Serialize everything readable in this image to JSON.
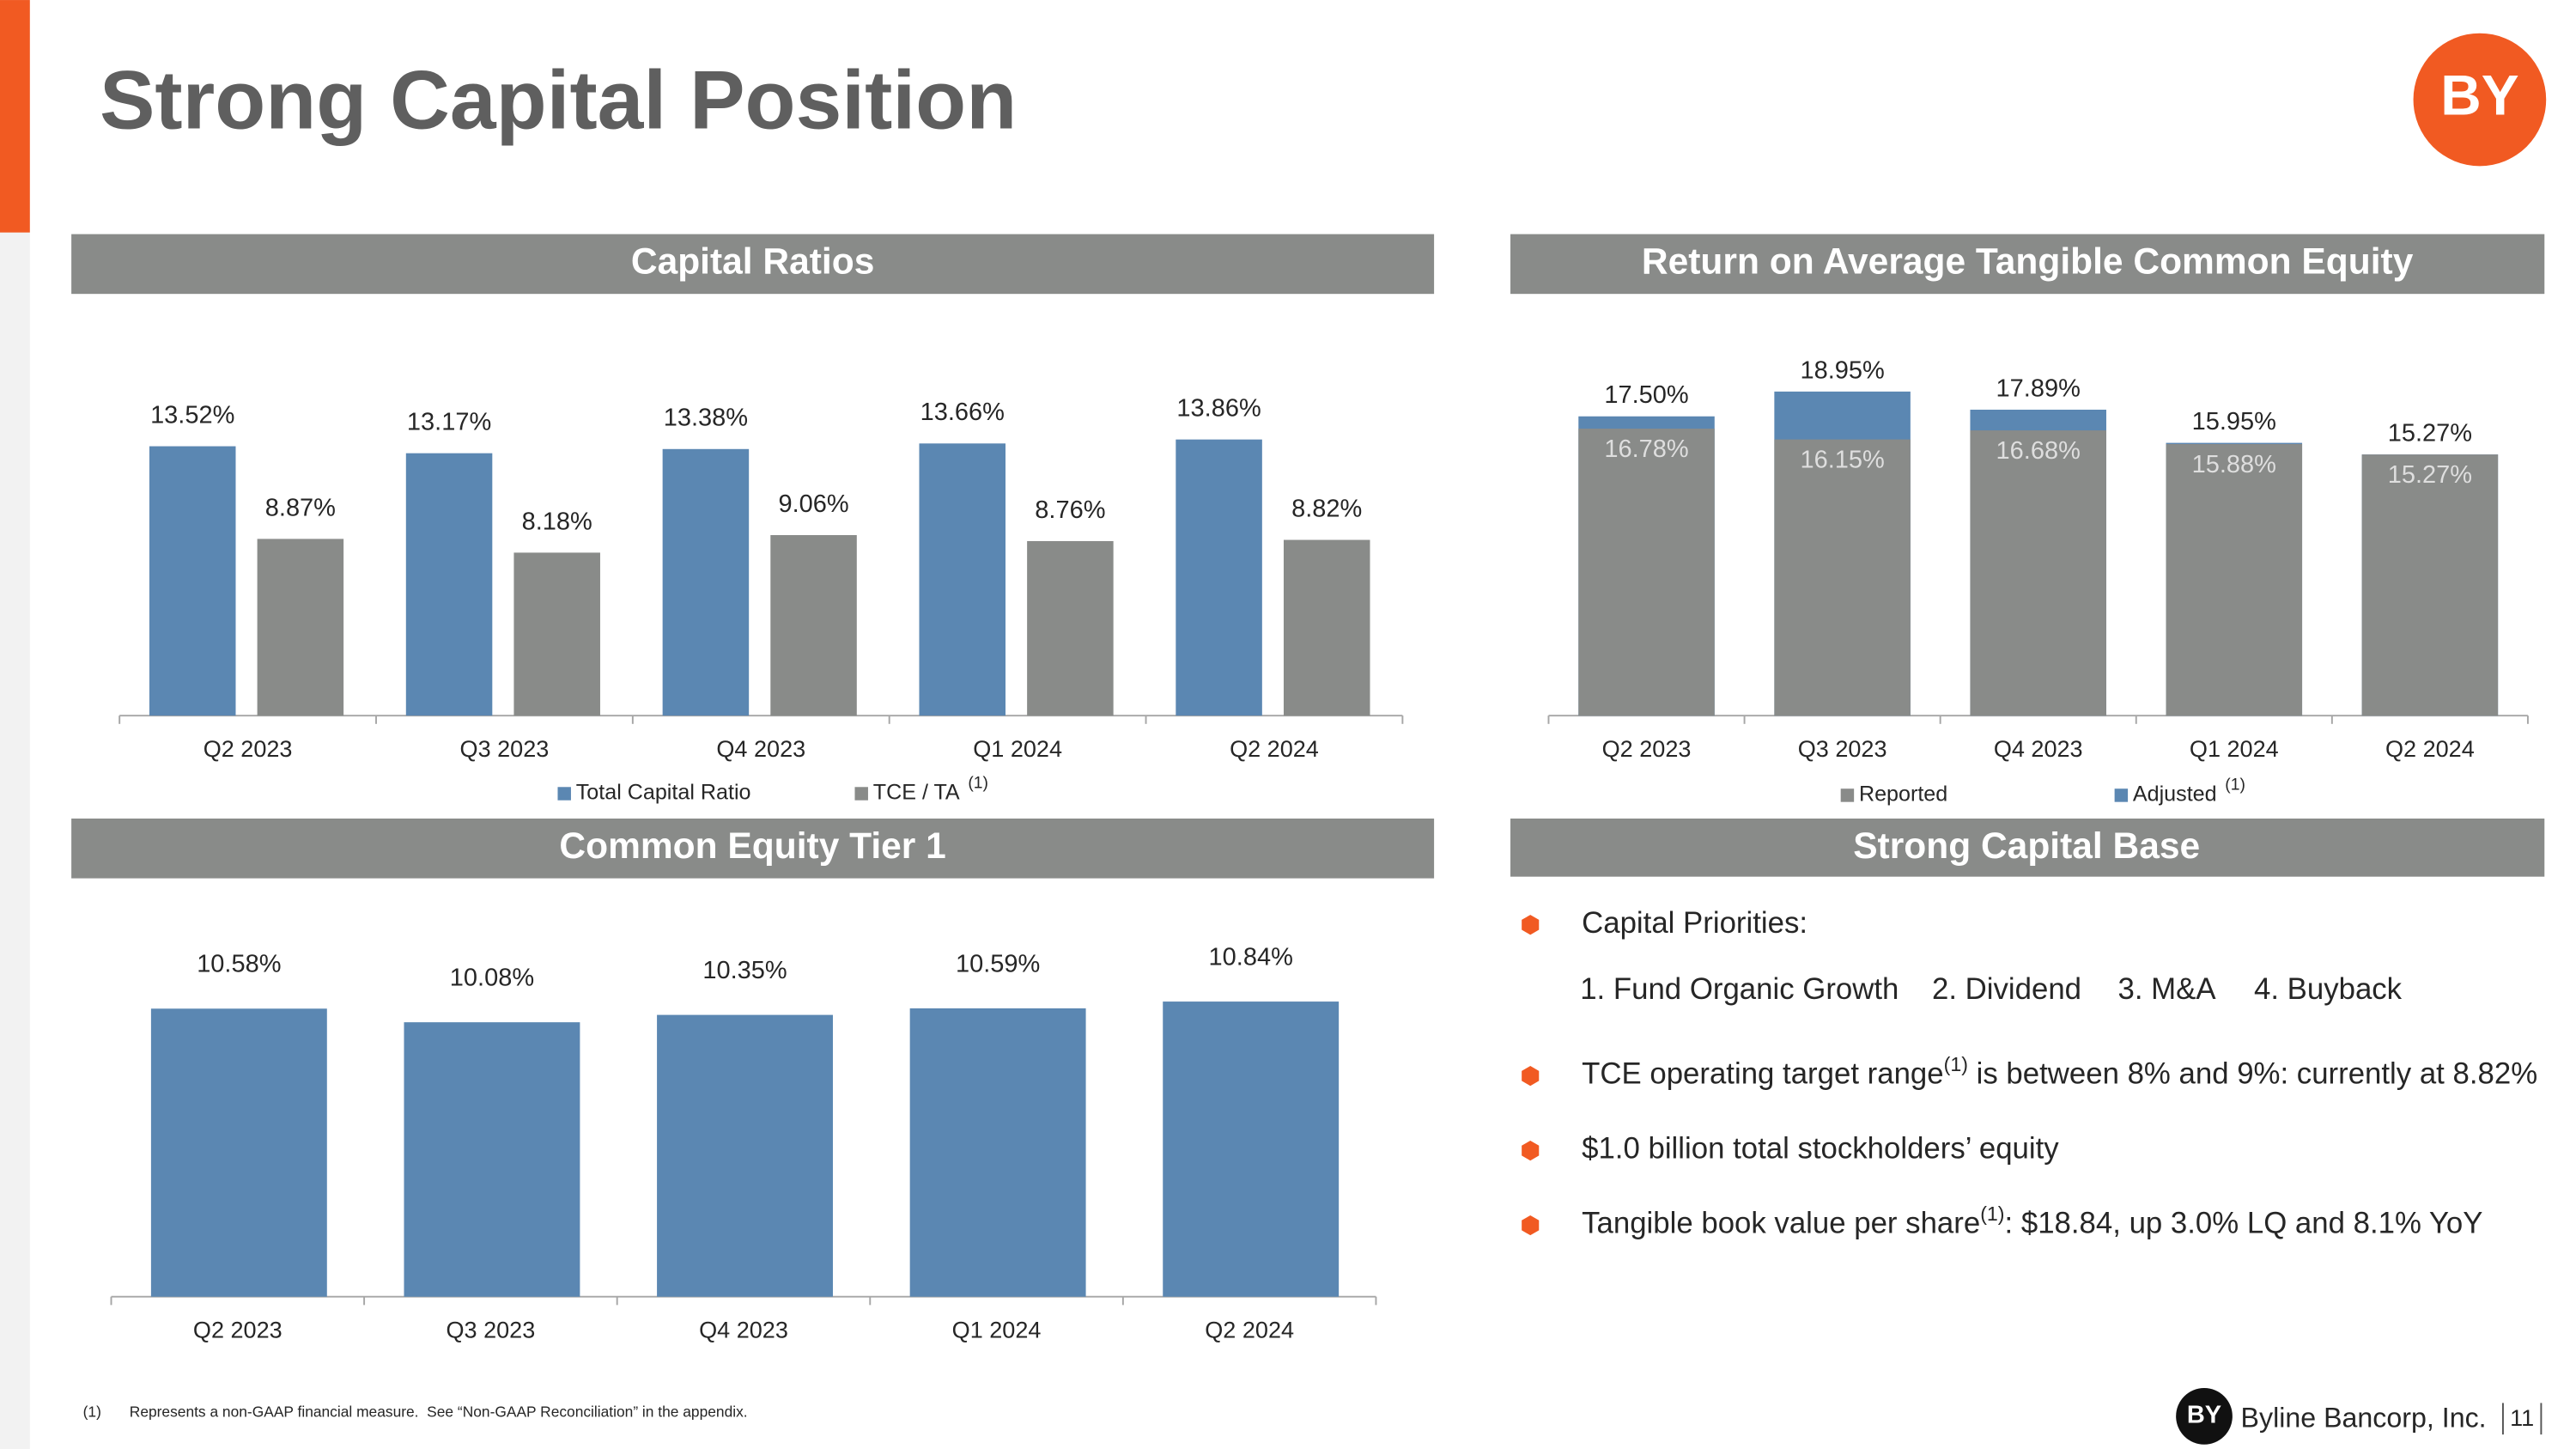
{
  "page": {
    "title": "Strong Capital Position",
    "logo": "BY",
    "section": "Strong Capital Base",
    "capital_base": {
      "heading": "Capital Priorities:",
      "priorities": [
        "1. Fund Organic Growth",
        "2. Dividend",
        "3. M&A",
        "4. Buyback"
      ],
      "bullets": [
        {
          "before": "TCE operating target range",
          "note": "(1)",
          "after": " is between 8% and 9%: currently at 8.82%"
        },
        {
          "before": "$1.0 billion total stockholders’ equity"
        },
        {
          "before": "Tangible book value per share",
          "note": "(1)",
          "after": ": $18.84, up 3.0% LQ and 8.1% YoY"
        }
      ]
    },
    "footnote": {
      "marker": "(1)",
      "text": "Represents a non-GAAP financial measure.  See “Non-GAAP Reconciliation” in the appendix."
    },
    "brand": "Byline Bancorp, Inc.",
    "page_number": "11"
  },
  "chart_data": [
    {
      "type": "bar",
      "barmode": "group",
      "title": "Capital Ratios",
      "categories": [
        "Q2 2023",
        "Q3 2023",
        "Q4 2023",
        "Q1 2024",
        "Q2 2024"
      ],
      "series": [
        {
          "name": "Total Capital Ratio",
          "color": "#5b87b2",
          "values": [
            13.52,
            13.17,
            13.38,
            13.66,
            13.86
          ],
          "value_labels": [
            "13.52%",
            "13.17%",
            "13.38%",
            "13.66%",
            "13.86%"
          ]
        },
        {
          "name": "TCE / TA",
          "note": "(1)",
          "color": "#898b89",
          "values": [
            8.87,
            8.18,
            9.06,
            8.76,
            8.82
          ],
          "value_labels": [
            "8.87%",
            "8.18%",
            "9.06%",
            "8.76%",
            "8.82%"
          ]
        }
      ]
    },
    {
      "type": "bar",
      "barmode": "overlay",
      "title": "Return on Average Tangible Common Equity",
      "categories": [
        "Q2 2023",
        "Q3 2023",
        "Q4 2023",
        "Q1 2024",
        "Q2 2024"
      ],
      "series": [
        {
          "name": "Reported",
          "color": "#898b89",
          "values": [
            16.78,
            16.15,
            16.68,
            15.88,
            15.27
          ],
          "value_labels": [
            "16.78%",
            "16.15%",
            "16.68%",
            "15.88%",
            "15.27%"
          ]
        },
        {
          "name": "Adjusted",
          "note": "(1)",
          "color": "#5b87b2",
          "values": [
            17.5,
            18.95,
            17.89,
            15.95,
            15.27
          ],
          "value_labels": [
            "17.50%",
            "18.95%",
            "17.89%",
            "15.95%",
            "15.27%"
          ]
        }
      ]
    },
    {
      "type": "bar",
      "barmode": "group",
      "title": "Common Equity Tier 1",
      "categories": [
        "Q2 2023",
        "Q3 2023",
        "Q4 2023",
        "Q1 2024",
        "Q2 2024"
      ],
      "series": [
        {
          "color": "#5b87b2",
          "values": [
            10.58,
            10.08,
            10.35,
            10.59,
            10.84
          ],
          "value_labels": [
            "10.58%",
            "10.08%",
            "10.35%",
            "10.59%",
            "10.84%"
          ]
        }
      ]
    }
  ]
}
